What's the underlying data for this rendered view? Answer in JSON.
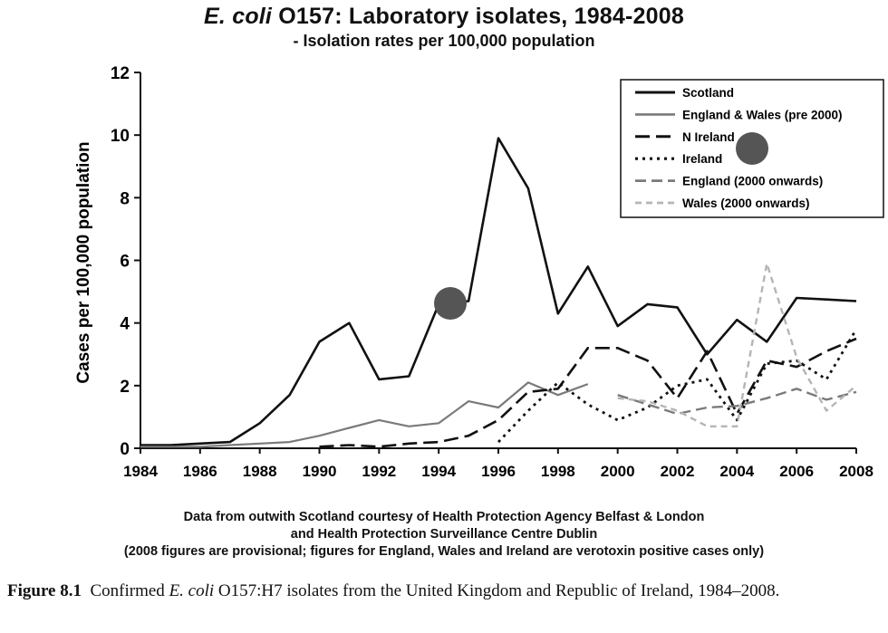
{
  "chart_data": {
    "type": "line",
    "title": "E. coli O157: Laboratory isolates, 1984-2008",
    "title_italic_part": "E. coli",
    "title_rest": " O157: Laboratory isolates, 1984-2008",
    "subtitle": "- Isolation rates per 100,000 population",
    "ylabel": "Cases per 100,000 population",
    "xlabel": "",
    "ylim": [
      0,
      12
    ],
    "xlim": [
      1984,
      2008
    ],
    "yticks": [
      0,
      2,
      4,
      6,
      8,
      10,
      12
    ],
    "xticks": [
      1984,
      1986,
      1988,
      1990,
      1992,
      1994,
      1996,
      1998,
      2000,
      2002,
      2004,
      2006,
      2008
    ],
    "grid": false,
    "legend_position": "top-right",
    "series": [
      {
        "name": "Scotland",
        "style": "solid-black",
        "x": [
          1984,
          1985,
          1986,
          1987,
          1988,
          1989,
          1990,
          1991,
          1992,
          1993,
          1994,
          1995,
          1996,
          1997,
          1998,
          1999,
          2000,
          2001,
          2002,
          2003,
          2004,
          2005,
          2006,
          2007,
          2008
        ],
        "y": [
          0.1,
          0.1,
          0.15,
          0.2,
          0.8,
          1.7,
          3.4,
          4.0,
          2.2,
          2.3,
          4.6,
          4.7,
          9.9,
          8.3,
          4.3,
          5.8,
          3.9,
          4.6,
          4.5,
          3.0,
          4.1,
          3.4,
          4.8,
          4.75,
          4.7
        ]
      },
      {
        "name": "England & Wales (pre 2000)",
        "style": "solid-gray",
        "x": [
          1984,
          1985,
          1986,
          1987,
          1988,
          1989,
          1990,
          1991,
          1992,
          1993,
          1994,
          1995,
          1996,
          1997,
          1998,
          1999
        ],
        "y": [
          0.05,
          0.05,
          0.05,
          0.1,
          0.15,
          0.2,
          0.4,
          0.65,
          0.9,
          0.7,
          0.8,
          1.5,
          1.3,
          2.1,
          1.7,
          2.05
        ]
      },
      {
        "name": "N Ireland",
        "style": "long-dash-black",
        "x": [
          1990,
          1991,
          1992,
          1993,
          1994,
          1995,
          1996,
          1997,
          1998,
          1999,
          2000,
          2001,
          2002,
          2003,
          2004,
          2005,
          2006,
          2007,
          2008
        ],
        "y": [
          0.05,
          0.1,
          0.05,
          0.15,
          0.2,
          0.4,
          0.9,
          1.8,
          1.9,
          3.2,
          3.2,
          2.8,
          1.6,
          3.1,
          1.1,
          2.8,
          2.6,
          3.1,
          3.5
        ]
      },
      {
        "name": "Ireland",
        "style": "dotted-black",
        "x": [
          1996,
          1997,
          1998,
          1999,
          2000,
          2001,
          2002,
          2003,
          2004,
          2005,
          2006,
          2007,
          2008
        ],
        "y": [
          0.2,
          1.2,
          2.1,
          1.4,
          0.9,
          1.3,
          2.0,
          2.2,
          0.9,
          2.7,
          2.8,
          2.2,
          3.8
        ]
      },
      {
        "name": "England (2000 onwards)",
        "style": "dash-gray",
        "x": [
          2000,
          2001,
          2002,
          2003,
          2004,
          2005,
          2006,
          2007,
          2008
        ],
        "y": [
          1.7,
          1.4,
          1.1,
          1.3,
          1.35,
          1.6,
          1.9,
          1.55,
          1.8
        ]
      },
      {
        "name": "Wales (2000 onwards)",
        "style": "dash-lightgray",
        "x": [
          2000,
          2001,
          2002,
          2003,
          2004,
          2005,
          2006,
          2007,
          2008
        ],
        "y": [
          1.6,
          1.5,
          1.2,
          0.7,
          0.7,
          5.9,
          2.9,
          1.2,
          2.0
        ]
      }
    ]
  },
  "notes": {
    "line1": "Data from outwith Scotland courtesy of Health Protection Agency Belfast & London",
    "line2": "and Health Protection Surveillance Centre Dublin",
    "line3": "(2008 figures are provisional; figures for England, Wales and Ireland are verotoxin positive cases only)"
  },
  "caption": {
    "label": "Figure 8.1",
    "pre": "Confirmed ",
    "italic": "E. coli",
    "post": " O157:H7 isolates from the United Kingdom and Republic of Ireland, 1984–2008."
  },
  "colors": {
    "black": "#111111",
    "gray": "#7a7a7a",
    "lightgray": "#b5b5b5",
    "marker": "#555555"
  }
}
